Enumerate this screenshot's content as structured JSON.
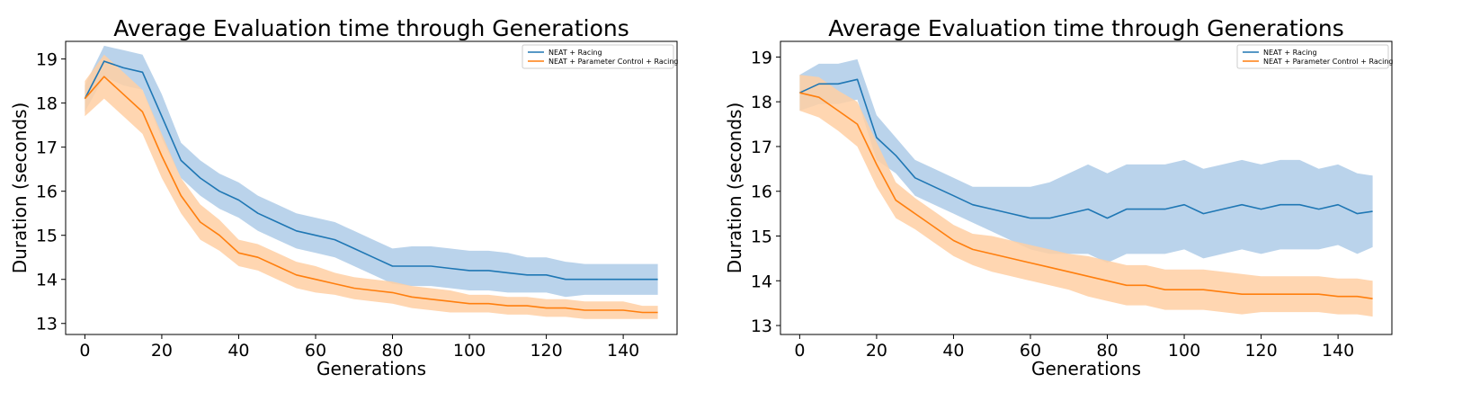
{
  "figure": {
    "background": "#ffffff"
  },
  "chart_data": [
    {
      "type": "line",
      "title": "Average Evaluation time through Generations",
      "xlabel": "Generations",
      "ylabel": "Duration (seconds)",
      "xlim": [
        -5,
        154
      ],
      "ylim": [
        12.75,
        19.4
      ],
      "xticks": [
        0,
        20,
        40,
        60,
        80,
        100,
        120,
        140
      ],
      "yticks": [
        13,
        14,
        15,
        16,
        17,
        18,
        19
      ],
      "grid": false,
      "legend": "top-right",
      "x": [
        0,
        5,
        10,
        15,
        20,
        25,
        30,
        35,
        40,
        45,
        50,
        55,
        60,
        65,
        70,
        75,
        80,
        85,
        90,
        95,
        100,
        105,
        110,
        115,
        120,
        125,
        130,
        135,
        140,
        145,
        149
      ],
      "series": [
        {
          "name": "NEAT + Racing",
          "color": "#1f77b4",
          "band_color": "#aecbe8",
          "values": [
            18.1,
            18.95,
            18.8,
            18.7,
            17.7,
            16.7,
            16.3,
            16.0,
            15.8,
            15.5,
            15.3,
            15.1,
            15.0,
            14.9,
            14.7,
            14.5,
            14.3,
            14.3,
            14.3,
            14.25,
            14.2,
            14.2,
            14.15,
            14.1,
            14.1,
            14.0,
            14.0,
            14.0,
            14.0,
            14.0,
            14.0
          ],
          "band": [
            0.3,
            0.35,
            0.4,
            0.4,
            0.5,
            0.4,
            0.4,
            0.4,
            0.4,
            0.4,
            0.4,
            0.4,
            0.4,
            0.4,
            0.4,
            0.4,
            0.4,
            0.45,
            0.45,
            0.45,
            0.45,
            0.45,
            0.45,
            0.4,
            0.4,
            0.4,
            0.35,
            0.35,
            0.35,
            0.35,
            0.35
          ]
        },
        {
          "name": "NEAT + Parameter Control + Racing",
          "color": "#ff7f0e",
          "band_color": "#ffcfa3",
          "values": [
            18.1,
            18.6,
            18.2,
            17.8,
            16.8,
            15.9,
            15.3,
            15.0,
            14.6,
            14.5,
            14.3,
            14.1,
            14.0,
            13.9,
            13.8,
            13.75,
            13.7,
            13.6,
            13.55,
            13.5,
            13.45,
            13.45,
            13.4,
            13.4,
            13.35,
            13.35,
            13.3,
            13.3,
            13.3,
            13.25,
            13.25
          ],
          "band": [
            0.4,
            0.5,
            0.5,
            0.5,
            0.5,
            0.4,
            0.4,
            0.35,
            0.3,
            0.3,
            0.3,
            0.3,
            0.3,
            0.25,
            0.25,
            0.25,
            0.25,
            0.25,
            0.25,
            0.25,
            0.2,
            0.2,
            0.2,
            0.2,
            0.2,
            0.2,
            0.2,
            0.2,
            0.2,
            0.15,
            0.15
          ]
        }
      ]
    },
    {
      "type": "line",
      "title": "Average Evaluation time through Generations",
      "xlabel": "Generations",
      "ylabel": "Duration (seconds)",
      "xlim": [
        -5,
        154
      ],
      "ylim": [
        12.8,
        19.35
      ],
      "xticks": [
        0,
        20,
        40,
        60,
        80,
        100,
        120,
        140
      ],
      "yticks": [
        13,
        14,
        15,
        16,
        17,
        18,
        19
      ],
      "grid": false,
      "legend": "top-right",
      "x": [
        0,
        5,
        10,
        15,
        20,
        25,
        30,
        35,
        40,
        45,
        50,
        55,
        60,
        65,
        70,
        75,
        80,
        85,
        90,
        95,
        100,
        105,
        110,
        115,
        120,
        125,
        130,
        135,
        140,
        145,
        149
      ],
      "series": [
        {
          "name": "NEAT + Racing",
          "color": "#1f77b4",
          "band_color": "#aecbe8",
          "values": [
            18.2,
            18.4,
            18.4,
            18.5,
            17.2,
            16.8,
            16.3,
            16.1,
            15.9,
            15.7,
            15.6,
            15.5,
            15.4,
            15.4,
            15.5,
            15.6,
            15.4,
            15.6,
            15.6,
            15.6,
            15.7,
            15.5,
            15.6,
            15.7,
            15.6,
            15.7,
            15.7,
            15.6,
            15.7,
            15.5,
            15.55
          ],
          "band": [
            0.4,
            0.45,
            0.45,
            0.45,
            0.5,
            0.4,
            0.4,
            0.4,
            0.4,
            0.4,
            0.5,
            0.6,
            0.7,
            0.8,
            0.9,
            1.0,
            1.0,
            1.0,
            1.0,
            1.0,
            1.0,
            1.0,
            1.0,
            1.0,
            1.0,
            1.0,
            1.0,
            0.9,
            0.9,
            0.9,
            0.8
          ]
        },
        {
          "name": "NEAT + Parameter Control + Racing",
          "color": "#ff7f0e",
          "band_color": "#ffcfa3",
          "values": [
            18.2,
            18.1,
            17.8,
            17.5,
            16.6,
            15.8,
            15.5,
            15.2,
            14.9,
            14.7,
            14.6,
            14.5,
            14.4,
            14.3,
            14.2,
            14.1,
            14.0,
            13.9,
            13.9,
            13.8,
            13.8,
            13.8,
            13.75,
            13.7,
            13.7,
            13.7,
            13.7,
            13.7,
            13.65,
            13.65,
            13.6
          ],
          "band": [
            0.4,
            0.45,
            0.45,
            0.5,
            0.5,
            0.4,
            0.35,
            0.35,
            0.35,
            0.35,
            0.4,
            0.4,
            0.4,
            0.4,
            0.4,
            0.45,
            0.45,
            0.45,
            0.45,
            0.45,
            0.45,
            0.45,
            0.45,
            0.45,
            0.4,
            0.4,
            0.4,
            0.4,
            0.4,
            0.4,
            0.4
          ]
        }
      ]
    }
  ]
}
